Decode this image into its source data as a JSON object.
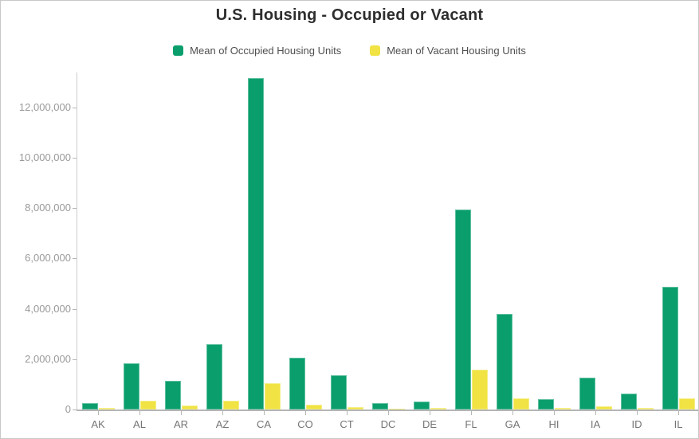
{
  "title": "U.S. Housing - Occupied or Vacant",
  "legend": {
    "items": [
      {
        "label": "Mean of Occupied Housing Units",
        "color": "#0a9e6d"
      },
      {
        "label": "Mean of Vacant Housing Units",
        "color": "#f0e343"
      }
    ]
  },
  "chart_data": {
    "type": "bar",
    "title": "U.S. Housing - Occupied or Vacant",
    "xlabel": "",
    "ylabel": "",
    "categories": [
      "AK",
      "AL",
      "AR",
      "AZ",
      "CA",
      "CO",
      "CT",
      "DC",
      "DE",
      "FL",
      "GA",
      "HI",
      "IA",
      "ID",
      "IL"
    ],
    "series": [
      {
        "name": "Mean of Occupied Housing Units",
        "color": "#0a9e6d",
        "values": [
          250000,
          1850000,
          1130000,
          2600000,
          13150000,
          2070000,
          1350000,
          250000,
          320000,
          7950000,
          3800000,
          420000,
          1270000,
          620000,
          4870000
        ]
      },
      {
        "name": "Mean of Vacant Housing Units",
        "color": "#f0e343",
        "values": [
          70000,
          340000,
          150000,
          350000,
          1050000,
          190000,
          100000,
          30000,
          70000,
          1580000,
          430000,
          70000,
          120000,
          70000,
          450000
        ]
      }
    ],
    "ylim": [
      0,
      13400000
    ],
    "yticks": [
      0,
      2000000,
      4000000,
      6000000,
      8000000,
      10000000,
      12000000
    ],
    "ytick_labels": [
      "0",
      "2,000,000",
      "4,000,000",
      "6,000,000",
      "8,000,000",
      "10,000,000",
      "12,000,000"
    ],
    "grid": false,
    "legend_position": "top"
  },
  "colors": {
    "accent_green": "#0a9e6d",
    "accent_yellow": "#f0e343",
    "title_text": "#2e2e2e",
    "legend_text": "#4f4f4f",
    "y_label_text": "#9a9a9a",
    "x_label_text": "#757575",
    "axis_line": "#cccccc",
    "baseline": "#b5b5b5"
  }
}
